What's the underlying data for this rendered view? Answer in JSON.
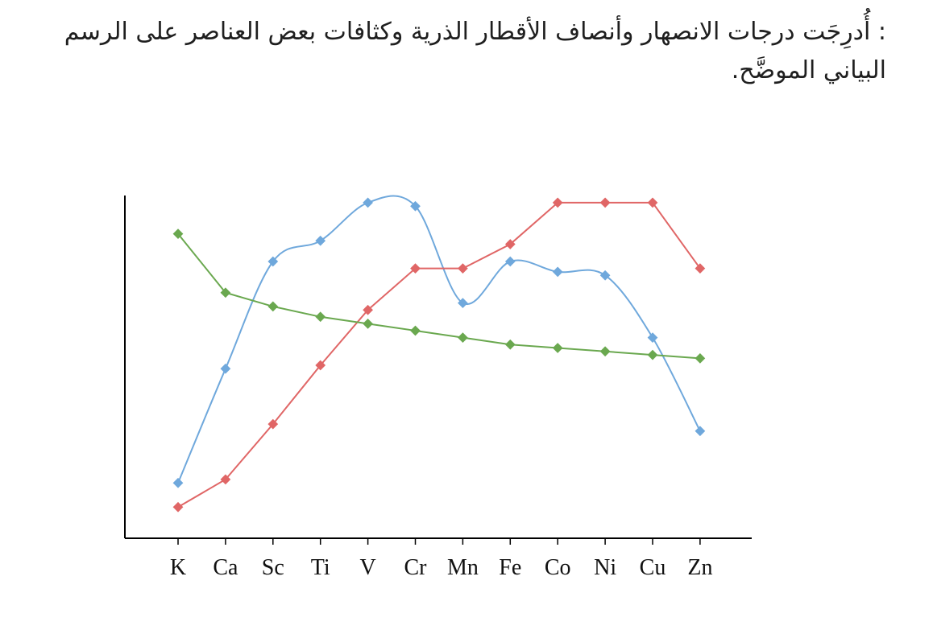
{
  "question": {
    "text": ": أُدرِجَت درجات الانصهار وأنصاف الأقطار الذرية وكثافات بعض العناصر على الرسم البياني الموضَّح."
  },
  "chart_data": {
    "type": "line",
    "title": "",
    "xlabel": "",
    "ylabel": "",
    "categories": [
      "K",
      "Ca",
      "Sc",
      "Ti",
      "V",
      "Cr",
      "Mn",
      "Fe",
      "Co",
      "Ni",
      "Cu",
      "Zn"
    ],
    "ylim": [
      0,
      100
    ],
    "grid": false,
    "legend": "none",
    "axis_color": "#000000",
    "series": [
      {
        "color": "#6fa8dc",
        "smooth": true,
        "values": [
          16,
          49,
          80,
          86,
          97,
          96,
          68,
          80,
          77,
          76,
          58,
          31
        ]
      },
      {
        "color": "#e06666",
        "smooth": false,
        "values": [
          9,
          17,
          33,
          50,
          66,
          78,
          78,
          85,
          97,
          97,
          97,
          78
        ]
      },
      {
        "color": "#6aa84f",
        "smooth": false,
        "values": [
          88,
          71,
          67,
          64,
          62,
          60,
          58,
          56,
          55,
          54,
          53,
          52
        ]
      }
    ]
  }
}
